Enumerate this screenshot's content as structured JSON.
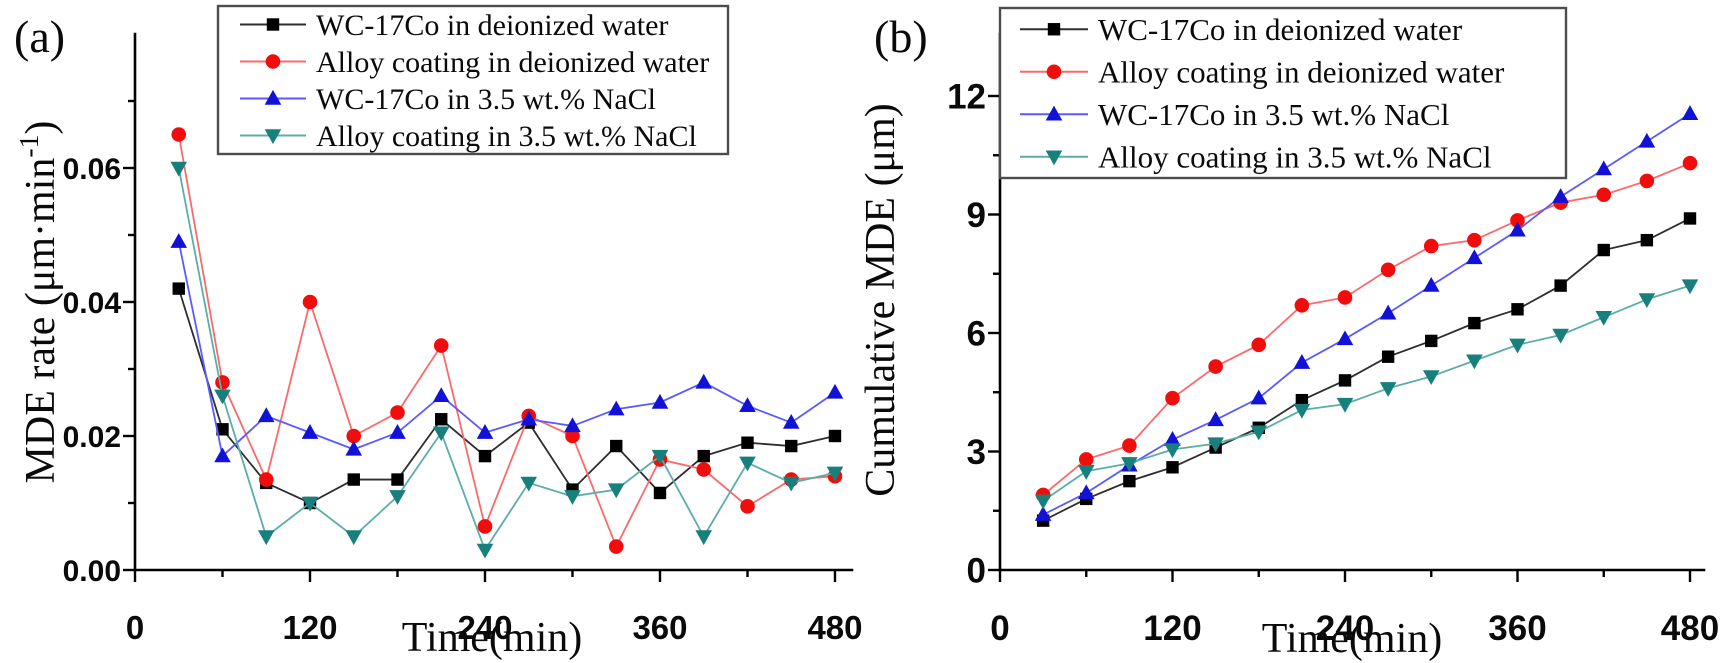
{
  "figure": {
    "background": "#ffffff",
    "axis_color": "#000000",
    "legend_border_color": "#4d4d4d",
    "x_axis_title": "Time(min)",
    "panel_a_letter": "(a)",
    "panel_b_letter": "(b)"
  },
  "chart_data": [
    {
      "type": "line",
      "panel": "a",
      "panel_label": "(a)",
      "title": "",
      "xlabel": "Time(min)",
      "ylabel": "MDE rate (μm·min⁻¹)",
      "ylabel_parts": {
        "pre": "MDE rate (μm·min",
        "sup": "-1",
        "post": ")"
      },
      "xlim": [
        0,
        492
      ],
      "ylim": [
        0,
        0.08
      ],
      "grid": false,
      "legend_position": "top",
      "x_major_ticks": [
        {
          "v": 0,
          "label": "0"
        },
        {
          "v": 120,
          "label": "120"
        },
        {
          "v": 240,
          "label": "240"
        },
        {
          "v": 360,
          "label": "360"
        },
        {
          "v": 480,
          "label": "480"
        }
      ],
      "x_minor_ticks": [
        60,
        180,
        300,
        420
      ],
      "y_major_ticks": [
        {
          "v": 0.0,
          "label": "0.00"
        },
        {
          "v": 0.02,
          "label": "0.02"
        },
        {
          "v": 0.04,
          "label": "0.04"
        },
        {
          "v": 0.06,
          "label": "0.06"
        }
      ],
      "y_minor_ticks": [
        0.01,
        0.03,
        0.05,
        0.07
      ],
      "x": [
        30,
        60,
        90,
        120,
        150,
        180,
        210,
        240,
        270,
        300,
        330,
        360,
        390,
        420,
        450,
        480
      ],
      "series": [
        {
          "name": "WC-17Co  in deionized water",
          "marker": "square",
          "marker_color": "#000000",
          "line_color": "#2e2e2e",
          "values": [
            0.042,
            0.021,
            0.013,
            0.01,
            0.0135,
            0.0135,
            0.0225,
            0.017,
            0.022,
            0.012,
            0.0185,
            0.0115,
            0.017,
            0.019,
            0.0185,
            0.02
          ]
        },
        {
          "name": "Alloy coating in deionized water",
          "marker": "circle",
          "marker_color": "#f20d0d",
          "line_color": "#fa6a6a",
          "values": [
            0.065,
            0.028,
            0.0135,
            0.04,
            0.02,
            0.0235,
            0.0335,
            0.0065,
            0.023,
            0.02,
            0.0035,
            0.0165,
            0.015,
            0.0095,
            0.0135,
            0.014
          ]
        },
        {
          "name": "WC-17Co in 3.5 wt.% NaCl",
          "marker": "triangle-up",
          "marker_color": "#1212d6",
          "line_color": "#5a5aff",
          "values": [
            0.049,
            0.017,
            0.023,
            0.0205,
            0.018,
            0.0205,
            0.026,
            0.0205,
            0.0225,
            0.0215,
            0.024,
            0.025,
            0.028,
            0.0245,
            0.022,
            0.0265
          ]
        },
        {
          "name": "Alloy coating in 3.5 wt.% NaCl",
          "marker": "triangle-down",
          "marker_color": "#17807d",
          "line_color": "#5bada9",
          "values": [
            0.06,
            0.026,
            0.005,
            0.01,
            0.005,
            0.011,
            0.0205,
            0.003,
            0.013,
            0.011,
            0.012,
            0.017,
            0.005,
            0.016,
            0.013,
            0.0145
          ]
        }
      ]
    },
    {
      "type": "line",
      "panel": "b",
      "panel_label": "(b)",
      "title": "",
      "xlabel": "Time(min)",
      "ylabel": "Cumulative MDE (μm)",
      "ylabel_parts": {
        "pre": "Cumulative MDE (μm)",
        "sup": "",
        "post": ""
      },
      "xlim": [
        0,
        489
      ],
      "ylim": [
        0,
        13.4
      ],
      "grid": false,
      "legend_position": "top",
      "x_major_ticks": [
        {
          "v": 0,
          "label": "0"
        },
        {
          "v": 120,
          "label": "120"
        },
        {
          "v": 240,
          "label": "240"
        },
        {
          "v": 360,
          "label": "360"
        },
        {
          "v": 480,
          "label": "480"
        }
      ],
      "x_minor_ticks": [
        60,
        180,
        300,
        420
      ],
      "y_major_ticks": [
        {
          "v": 0,
          "label": "0"
        },
        {
          "v": 3,
          "label": "3"
        },
        {
          "v": 6,
          "label": "6"
        },
        {
          "v": 9,
          "label": "9"
        },
        {
          "v": 12,
          "label": "12"
        }
      ],
      "y_minor_ticks": [
        1.5,
        4.5,
        7.5,
        10.5
      ],
      "x": [
        30,
        60,
        90,
        120,
        150,
        180,
        210,
        240,
        270,
        300,
        330,
        360,
        390,
        420,
        450,
        480
      ],
      "series": [
        {
          "name": "WC-17Co  in deionized water",
          "marker": "square",
          "marker_color": "#000000",
          "line_color": "#2e2e2e",
          "values": [
            1.25,
            1.8,
            2.25,
            2.6,
            3.1,
            3.6,
            4.3,
            4.8,
            5.4,
            5.8,
            6.25,
            6.6,
            7.2,
            8.1,
            8.35,
            8.9
          ]
        },
        {
          "name": "Alloy coating in deionized water",
          "marker": "circle",
          "marker_color": "#f20d0d",
          "line_color": "#fa6a6a",
          "values": [
            1.9,
            2.8,
            3.15,
            4.35,
            5.15,
            5.7,
            6.7,
            6.9,
            7.6,
            8.2,
            8.35,
            8.85,
            9.3,
            9.5,
            9.85,
            10.3
          ]
        },
        {
          "name": "WC-17Co  in 3.5 wt.% NaCl",
          "marker": "triangle-up",
          "marker_color": "#1212d6",
          "line_color": "#5a5aff",
          "values": [
            1.4,
            1.95,
            2.65,
            3.3,
            3.8,
            4.35,
            5.25,
            5.85,
            6.5,
            7.2,
            7.9,
            8.6,
            9.45,
            10.15,
            10.85,
            11.55
          ]
        },
        {
          "name": "Alloy coating in 3.5 wt.% NaCl",
          "marker": "triangle-down",
          "marker_color": "#17807d",
          "line_color": "#5bada9",
          "values": [
            1.75,
            2.5,
            2.7,
            3.05,
            3.2,
            3.5,
            4.05,
            4.2,
            4.6,
            4.9,
            5.3,
            5.7,
            5.95,
            6.4,
            6.85,
            7.2
          ]
        }
      ]
    }
  ]
}
